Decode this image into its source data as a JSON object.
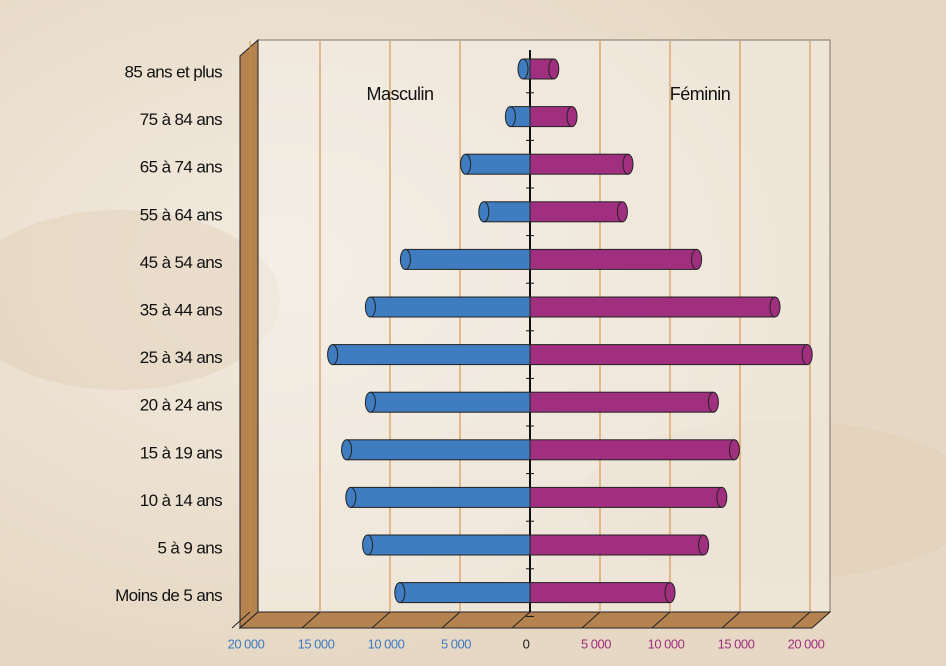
{
  "chart_data": {
    "type": "pyramid",
    "categories": [
      "85 ans et plus",
      "75 à 84 ans",
      "65 à 74 ans",
      "55 à 64 ans",
      "45 à 54 ans",
      "35 à 44 ans",
      "25 à 34 ans",
      "20 à 24 ans",
      "15 à 19 ans",
      "10 à 14 ans",
      "5 à 9 ans",
      "Moins de 5 ans"
    ],
    "series": [
      {
        "name": "Masculin",
        "color": "#3f7cc0",
        "side": "left",
        "values": [
          500,
          1400,
          4600,
          3300,
          8900,
          11400,
          14100,
          11400,
          13100,
          12800,
          11600,
          9300
        ]
      },
      {
        "name": "Féminin",
        "color": "#a0307f",
        "side": "right",
        "values": [
          1700,
          3000,
          7000,
          6600,
          11900,
          17500,
          19800,
          13100,
          14600,
          13700,
          12400,
          10000
        ]
      }
    ],
    "xlim": [
      0,
      20000
    ],
    "xticks_left": [
      {
        "value": 20000,
        "label": "20 000"
      },
      {
        "value": 15000,
        "label": "15 000"
      },
      {
        "value": 10000,
        "label": "10 000"
      },
      {
        "value": 5000,
        "label": "5 000"
      }
    ],
    "xticks_right": [
      0,
      {
        "value": 5000,
        "label": "5 000"
      },
      {
        "value": 10000,
        "label": "10 000"
      },
      {
        "value": 15000,
        "label": "15 000"
      },
      {
        "value": 20000,
        "label": "20 000"
      }
    ],
    "grid": true
  }
}
